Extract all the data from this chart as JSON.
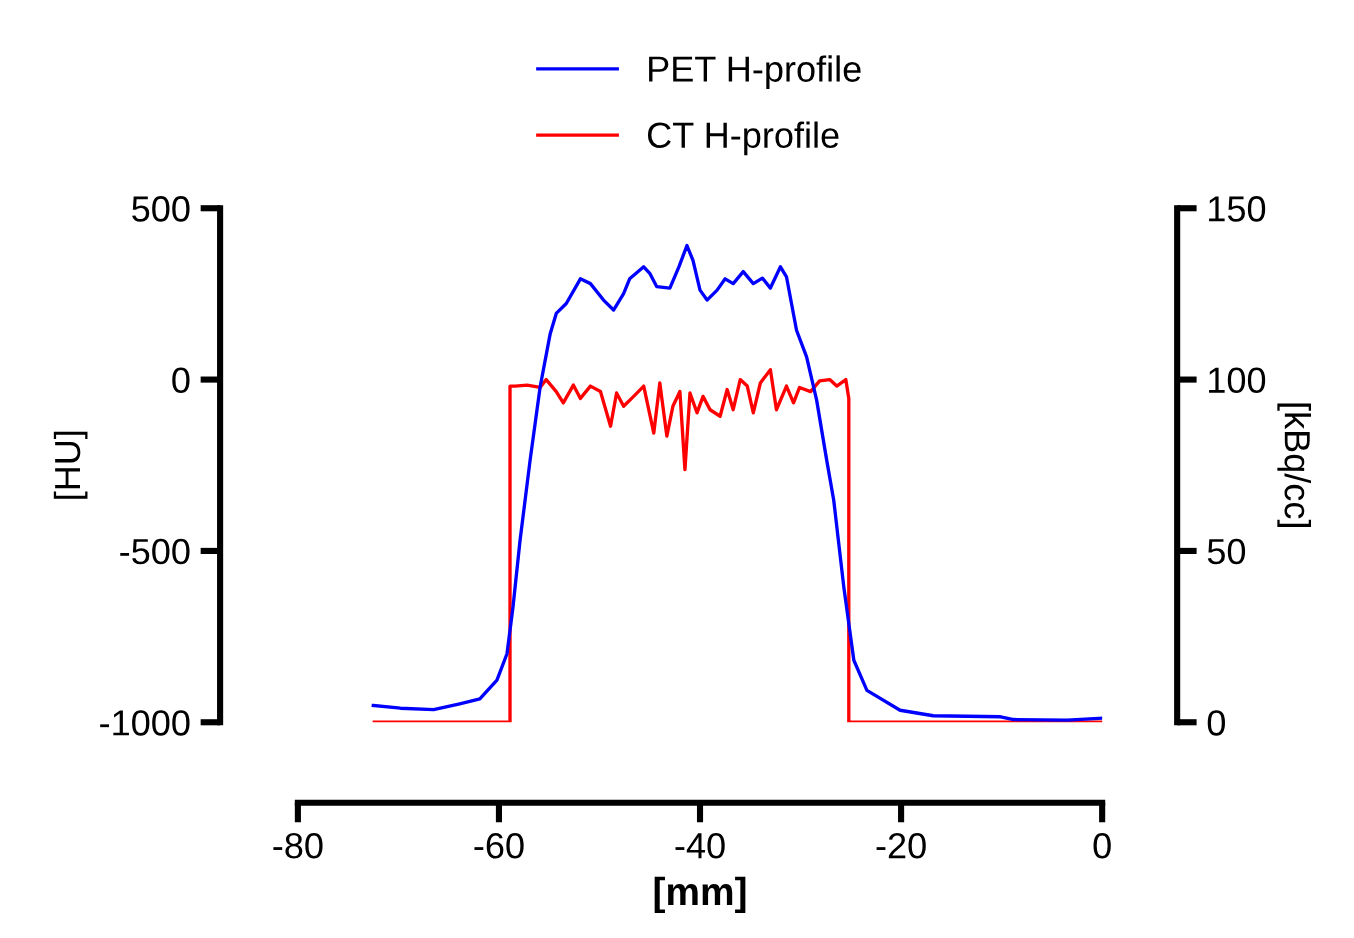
{
  "chart_data": {
    "type": "line",
    "xlabel": "[mm]",
    "ylabel": "[HU]",
    "y2label": "[kBq/cc]",
    "xlim": [
      -80,
      0
    ],
    "xticks": [
      -80,
      -60,
      -40,
      -20,
      0
    ],
    "ylim": [
      -1000,
      500
    ],
    "yticks": [
      -1000,
      -500,
      0,
      500
    ],
    "y2lim": [
      0,
      150
    ],
    "y2ticks": [
      0,
      50,
      100,
      150
    ],
    "grid": false,
    "legend": "top",
    "marker": "none",
    "line_style": "solid",
    "series": [
      {
        "name": "PET H-profile",
        "color": "#0000ff",
        "axis": "y2",
        "x": [
          -72.5,
          -69.8,
          -66.5,
          -63.9,
          -61.9,
          -60.2,
          -59.2,
          -58.6,
          -57.9,
          -56.9,
          -55.9,
          -54.9,
          -54.3,
          -53.3,
          -51.9,
          -50.9,
          -49.6,
          -48.6,
          -47.6,
          -47.0,
          -45.6,
          -45.0,
          -44.3,
          -43.0,
          -42.1,
          -41.3,
          -40.7,
          -40.0,
          -39.3,
          -38.3,
          -37.5,
          -36.7,
          -35.7,
          -34.7,
          -33.8,
          -33.0,
          -32.0,
          -31.4,
          -30.4,
          -29.4,
          -28.4,
          -27.4,
          -26.7,
          -25.7,
          -24.7,
          -23.4,
          -20.1,
          -16.8,
          -10.1,
          -8.8,
          -3.5,
          0
        ],
        "values": [
          4.9,
          4.1,
          3.7,
          5.4,
          6.8,
          12.3,
          20.0,
          33.7,
          53.1,
          76.5,
          97.9,
          113.4,
          119.3,
          122.2,
          129.4,
          128.0,
          123.2,
          120.3,
          125.1,
          129.4,
          132.9,
          131.0,
          127.1,
          126.7,
          132.9,
          139.1,
          134.8,
          126.1,
          123.2,
          126.1,
          129.4,
          128.0,
          131.5,
          128.0,
          129.6,
          126.7,
          132.9,
          130.0,
          114.4,
          106.6,
          94.0,
          76.5,
          64.8,
          39.5,
          18.1,
          9.3,
          3.5,
          1.9,
          1.6,
          0.8,
          0.6,
          1.2
        ]
      },
      {
        "name": "CT H-profile",
        "color": "#ff0000",
        "axis": "y",
        "x": [
          -72.4,
          -58.9,
          -58.9,
          -58.4,
          -57.2,
          -55.9,
          -55.3,
          -54.3,
          -53.6,
          -52.6,
          -51.9,
          -50.9,
          -49.9,
          -48.9,
          -48.3,
          -47.6,
          -46.6,
          -45.6,
          -44.6,
          -44.0,
          -43.3,
          -42.7,
          -42.0,
          -41.5,
          -41.0,
          -40.3,
          -39.7,
          -39.0,
          -38.0,
          -37.3,
          -36.7,
          -36.0,
          -35.3,
          -34.7,
          -34.0,
          -33.0,
          -32.4,
          -31.4,
          -30.7,
          -30.1,
          -29.0,
          -28.1,
          -27.1,
          -26.4,
          -25.5,
          -25.2,
          -25.2,
          0
        ],
        "values": [
          -1000,
          -1000,
          -19,
          -19,
          -16,
          -23,
          0,
          -35,
          -68,
          -16,
          -55,
          -19,
          -35,
          -136,
          -39,
          -78,
          -49,
          -19,
          -156,
          -10,
          -165,
          -78,
          -35,
          -263,
          -39,
          -97,
          -49,
          -88,
          -107,
          -29,
          -88,
          0,
          -19,
          -97,
          -10,
          29,
          -88,
          -19,
          -68,
          -23,
          -35,
          -4,
          0,
          -19,
          0,
          -55,
          -1000,
          -1000
        ]
      }
    ]
  }
}
